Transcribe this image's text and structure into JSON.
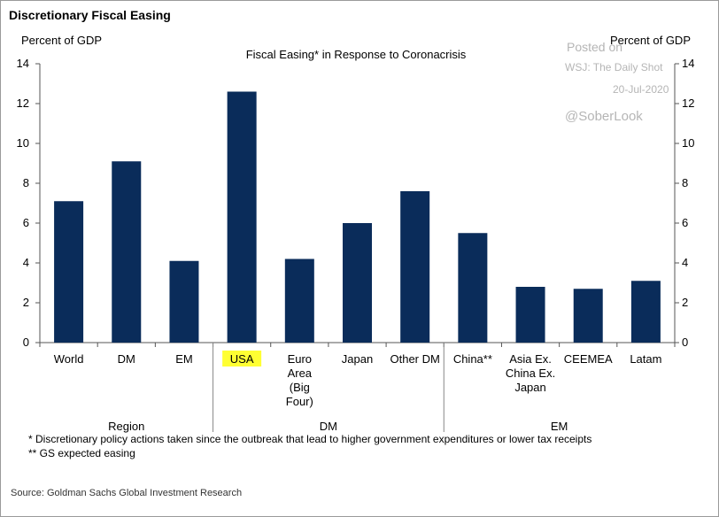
{
  "title": "Discretionary Fiscal Easing",
  "chart_data": {
    "type": "bar",
    "title": "Fiscal Easing* in Response to Coronacrisis",
    "ylabel_left": "Percent of GDP",
    "ylabel_right": "Percent of GDP",
    "ylim": [
      0,
      14
    ],
    "yticks": [
      0,
      2,
      4,
      6,
      8,
      10,
      12,
      14
    ],
    "categories": [
      {
        "label": [
          "World"
        ],
        "value": 7.1
      },
      {
        "label": [
          "DM"
        ],
        "value": 9.1
      },
      {
        "label": [
          "EM"
        ],
        "value": 4.1
      },
      {
        "label": [
          "USA"
        ],
        "value": 12.6,
        "highlight": true
      },
      {
        "label": [
          "Euro",
          "Area",
          "(Big",
          "Four)"
        ],
        "value": 4.2
      },
      {
        "label": [
          "Japan"
        ],
        "value": 6.0
      },
      {
        "label": [
          "Other DM"
        ],
        "value": 7.6
      },
      {
        "label": [
          "China**"
        ],
        "value": 5.5
      },
      {
        "label": [
          "Asia Ex.",
          "China Ex.",
          "Japan"
        ],
        "value": 2.8
      },
      {
        "label": [
          "CEEMEA"
        ],
        "value": 2.7
      },
      {
        "label": [
          "Latam"
        ],
        "value": 3.1
      }
    ],
    "groups": [
      {
        "name": "Region",
        "start": 0,
        "end": 2
      },
      {
        "name": "DM",
        "start": 3,
        "end": 6
      },
      {
        "name": "EM",
        "start": 7,
        "end": 10
      }
    ],
    "bar_color": "#0a2c5a",
    "highlight_color": "#ffff33",
    "grid": false
  },
  "watermark": {
    "line1": "Posted on",
    "line2": "WSJ: The Daily Shot",
    "line3": "20-Jul-2020",
    "line4": "@SoberLook"
  },
  "notes": [
    "* Discretionary policy actions taken since the outbreak that lead to higher government expenditures or lower tax receipts",
    "** GS expected easing"
  ],
  "source": "Source: Goldman Sachs Global Investment Research"
}
